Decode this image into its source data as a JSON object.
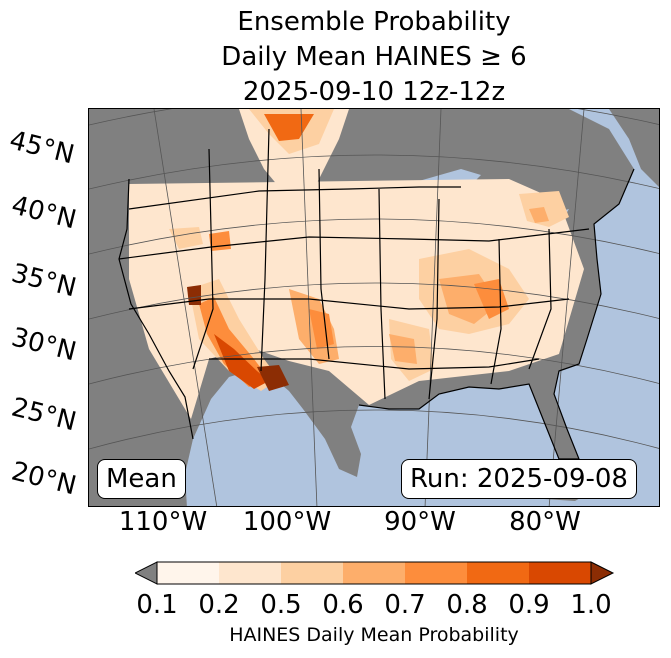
{
  "title": {
    "line1": "Ensemble Probability",
    "line2": "Daily Mean HAINES ≥ 6",
    "line3": "2025-09-10 12z-12z"
  },
  "map": {
    "latitude_labels": [
      "45°N",
      "40°N",
      "35°N",
      "30°N",
      "25°N",
      "20°N"
    ],
    "longitude_labels": [
      "110°W",
      "100°W",
      "90°W",
      "80°W"
    ],
    "stat_box": "Mean",
    "run_box": "Run: 2025-09-08",
    "colors": {
      "ocean": "#b0c4de",
      "land_no_data": "#808080",
      "borders": "#000000",
      "graticule": "#555555"
    }
  },
  "colorbar": {
    "label": "HAINES Daily Mean Probability",
    "ticks": [
      "0.1",
      "0.2",
      "0.5",
      "0.6",
      "0.7",
      "0.8",
      "0.9",
      "1.0"
    ],
    "under_color": "#808080",
    "bins": [
      {
        "range": "0.1-0.2",
        "color": "#fff5eb"
      },
      {
        "range": "0.2-0.5",
        "color": "#fee6ce"
      },
      {
        "range": "0.5-0.6",
        "color": "#fdd0a2"
      },
      {
        "range": "0.6-0.7",
        "color": "#fdae6b"
      },
      {
        "range": "0.7-0.8",
        "color": "#fd8d3c"
      },
      {
        "range": "0.8-0.9",
        "color": "#f16913"
      },
      {
        "range": "0.9-1.0",
        "color": "#d94801"
      }
    ],
    "over_color": "#8c2d04"
  }
}
